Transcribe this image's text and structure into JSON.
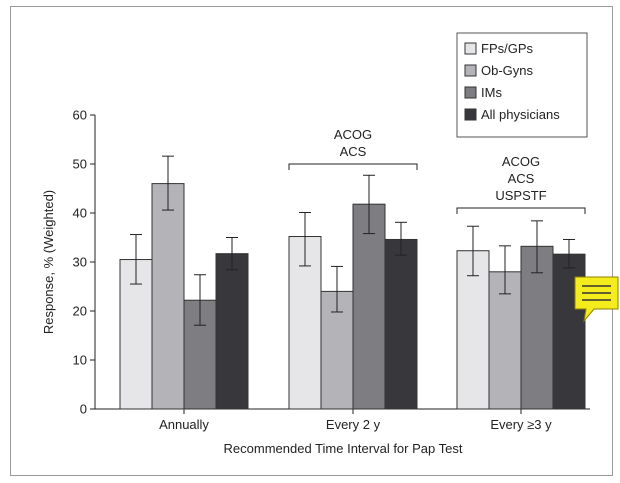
{
  "chart_data": {
    "type": "bar",
    "xlabel": "Recommended Time Interval for Pap Test",
    "ylabel": "Response, % (Weighted)",
    "ylim": [
      0,
      60
    ],
    "yticks": [
      0,
      10,
      20,
      30,
      40,
      50,
      60
    ],
    "categories": [
      "Annually",
      "Every 2 y",
      "Every ≥3 y"
    ],
    "series": [
      {
        "name": "FPs/GPs",
        "color": "#e6e6e8",
        "values": [
          30.5,
          35.2,
          32.3
        ],
        "err_low": [
          25.5,
          29.2,
          27.2
        ],
        "err_high": [
          35.6,
          40.1,
          37.3
        ]
      },
      {
        "name": "Ob-Gyns",
        "color": "#b4b4b8",
        "values": [
          46.0,
          24.0,
          28.0
        ],
        "err_low": [
          40.6,
          19.8,
          23.5
        ],
        "err_high": [
          51.6,
          29.1,
          33.3
        ]
      },
      {
        "name": "IMs",
        "color": "#7e7e82",
        "values": [
          22.2,
          41.8,
          33.2
        ],
        "err_low": [
          17.1,
          35.8,
          27.8
        ],
        "err_high": [
          27.4,
          47.7,
          38.4
        ]
      },
      {
        "name": "All physicians",
        "color": "#38383c",
        "values": [
          31.7,
          34.6,
          31.6
        ],
        "err_low": [
          28.4,
          31.4,
          28.8
        ],
        "err_high": [
          35.0,
          38.1,
          34.6
        ]
      }
    ],
    "annotations": [
      {
        "category_index": 1,
        "lines": [
          "ACOG",
          "ACS"
        ]
      },
      {
        "category_index": 2,
        "lines": [
          "ACOG",
          "ACS",
          "USPSTF"
        ]
      }
    ],
    "legend_position": "top-right",
    "grid": false
  },
  "note_icon": {
    "name": "comment-note-icon",
    "color": "#f5ec1e"
  }
}
